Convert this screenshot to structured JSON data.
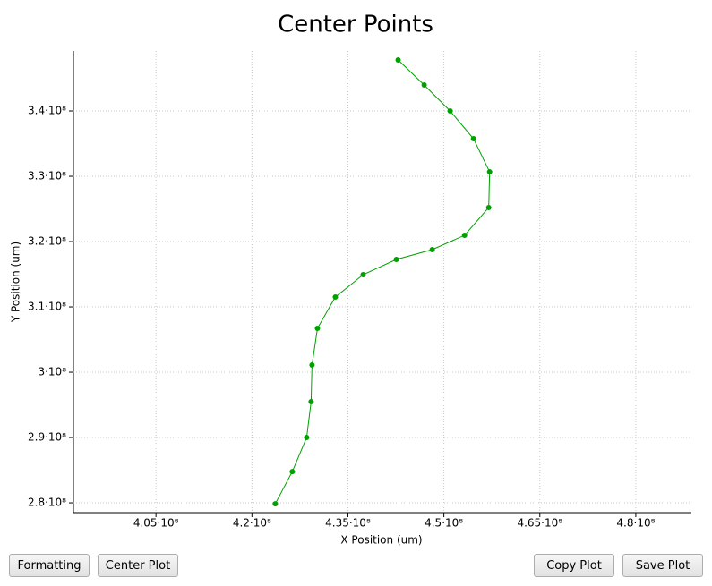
{
  "chart_data": {
    "type": "line",
    "title": "Center Points",
    "x_label": "X Position (um)",
    "y_label": "Y Position (um)",
    "x": [
      442850000,
      446920000,
      450980000,
      454630000,
      457150000,
      457010000,
      453230000,
      448180000,
      442570000,
      437380000,
      433040000,
      430240000,
      429390000,
      429250000,
      428550000,
      426310000,
      423650000
    ],
    "values": [
      347810000,
      343970000,
      340000000,
      335750000,
      330680000,
      325210000,
      320960000,
      318770000,
      317260000,
      314930000,
      311510000,
      306710000,
      301100000,
      295480000,
      290000000,
      284790000,
      279860000
    ],
    "color": "#00a000",
    "xlim": [
      392100000,
      488550000
    ],
    "xticks": [
      {
        "value": 405000000,
        "label": "4.05·10⁸"
      },
      {
        "value": 420000000,
        "label": "4.2·10⁸"
      },
      {
        "value": 435000000,
        "label": "4.35·10⁸"
      },
      {
        "value": 450000000,
        "label": "4.5·10⁸"
      },
      {
        "value": 465000000,
        "label": "4.65·10⁸"
      },
      {
        "value": 480000000,
        "label": "4.8·10⁸"
      }
    ],
    "ylim": [
      278500000,
      349180000
    ],
    "yticks": [
      {
        "value": 280000000,
        "label": "2.8·10⁸"
      },
      {
        "value": 290000000,
        "label": "2.9·10⁸"
      },
      {
        "value": 300000000,
        "label": "3·10⁸"
      },
      {
        "value": 310000000,
        "label": "3.1·10⁸"
      },
      {
        "value": 320000000,
        "label": "3.2·10⁸"
      },
      {
        "value": 330000000,
        "label": "3.3·10⁸"
      },
      {
        "value": 340000000,
        "label": "3.4·10⁸"
      }
    ],
    "grid": true
  },
  "buttons": [
    "Formatting",
    "Center Plot",
    "Copy Plot",
    "Save Plot"
  ]
}
